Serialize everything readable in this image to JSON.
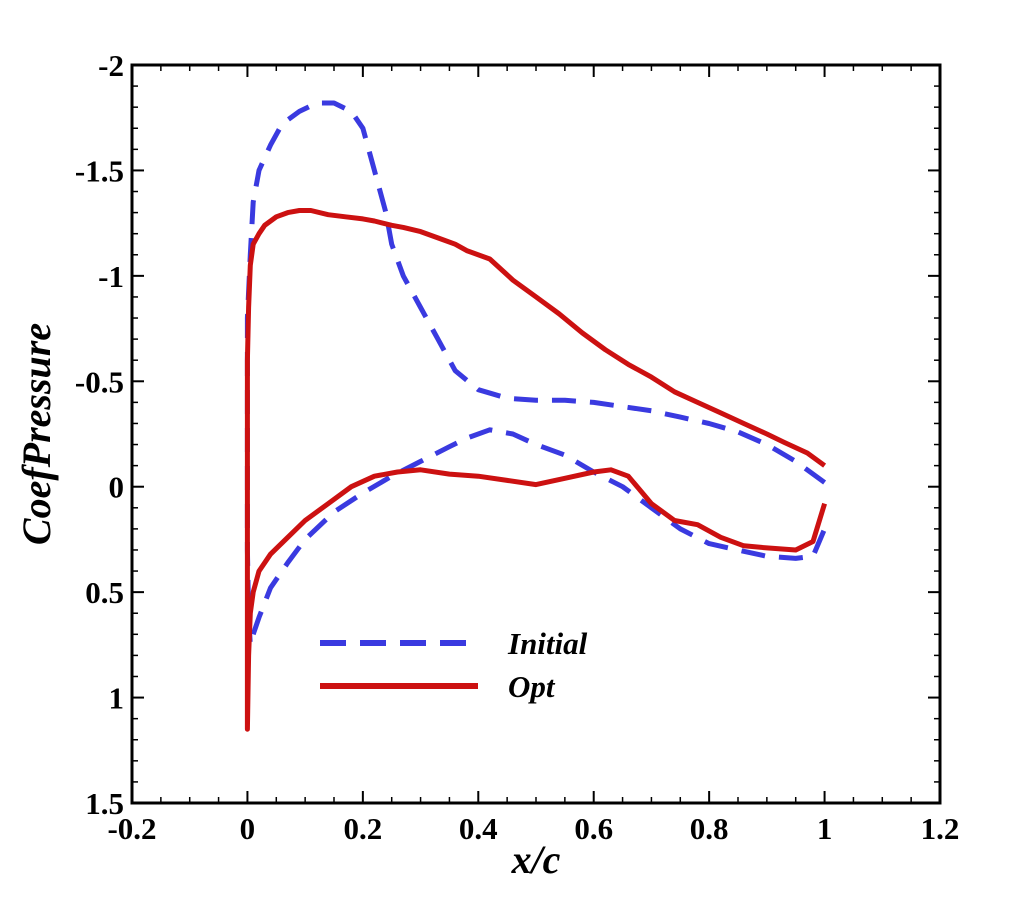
{
  "chart_data": {
    "type": "line",
    "title": "",
    "xlabel": "x/c",
    "ylabel": "CoefPressure",
    "xlim": [
      -0.2,
      1.2
    ],
    "ylim": [
      -2,
      1.5
    ],
    "y_axis_inverted": true,
    "grid": false,
    "legend_position": "lower-center",
    "x_ticks": [
      "-0.2",
      "0",
      "0.2",
      "0.4",
      "0.6",
      "0.8",
      "1",
      "1.2"
    ],
    "y_ticks": [
      "-2",
      "-1.5",
      "-1",
      "-0.5",
      "0",
      "0.5",
      "1",
      "1.5"
    ],
    "series": [
      {
        "name": "Initial",
        "color": "#3a3ae0",
        "style": "dashed",
        "x": [
          1.0,
          0.95,
          0.9,
          0.85,
          0.8,
          0.75,
          0.7,
          0.65,
          0.6,
          0.55,
          0.5,
          0.45,
          0.4,
          0.36,
          0.33,
          0.3,
          0.27,
          0.25,
          0.24,
          0.22,
          0.2,
          0.18,
          0.15,
          0.12,
          0.09,
          0.06,
          0.04,
          0.02,
          0.01,
          0.005,
          0.0,
          0.0,
          0.002,
          0.005,
          0.01,
          0.02,
          0.04,
          0.07,
          0.1,
          0.15,
          0.2,
          0.25,
          0.3,
          0.35,
          0.38,
          0.42,
          0.46,
          0.5,
          0.55,
          0.6,
          0.65,
          0.7,
          0.75,
          0.8,
          0.85,
          0.9,
          0.95,
          0.98,
          1.0
        ],
        "y": [
          -0.02,
          -0.12,
          -0.2,
          -0.26,
          -0.3,
          -0.33,
          -0.36,
          -0.38,
          -0.4,
          -0.41,
          -0.41,
          -0.42,
          -0.46,
          -0.55,
          -0.7,
          -0.85,
          -1.0,
          -1.15,
          -1.3,
          -1.5,
          -1.7,
          -1.78,
          -1.82,
          -1.82,
          -1.78,
          -1.72,
          -1.62,
          -1.5,
          -1.35,
          -1.1,
          -0.8,
          0.3,
          0.6,
          0.75,
          0.7,
          0.62,
          0.48,
          0.36,
          0.25,
          0.12,
          0.03,
          -0.05,
          -0.12,
          -0.19,
          -0.23,
          -0.27,
          -0.25,
          -0.2,
          -0.15,
          -0.07,
          0.0,
          0.1,
          0.2,
          0.27,
          0.3,
          0.33,
          0.34,
          0.33,
          0.2
        ]
      },
      {
        "name": "Opt",
        "color": "#cc1111",
        "style": "solid",
        "x": [
          1.0,
          0.97,
          0.93,
          0.9,
          0.86,
          0.82,
          0.78,
          0.74,
          0.7,
          0.66,
          0.62,
          0.58,
          0.54,
          0.5,
          0.46,
          0.42,
          0.38,
          0.36,
          0.33,
          0.3,
          0.27,
          0.25,
          0.22,
          0.2,
          0.17,
          0.14,
          0.11,
          0.09,
          0.07,
          0.05,
          0.03,
          0.02,
          0.01,
          0.005,
          0.002,
          0.0,
          0.0,
          0.002,
          0.005,
          0.01,
          0.02,
          0.04,
          0.07,
          0.1,
          0.14,
          0.18,
          0.22,
          0.26,
          0.3,
          0.35,
          0.4,
          0.45,
          0.5,
          0.55,
          0.6,
          0.63,
          0.66,
          0.7,
          0.74,
          0.78,
          0.82,
          0.86,
          0.9,
          0.95,
          0.98,
          1.0
        ],
        "y": [
          -0.1,
          -0.16,
          -0.21,
          -0.25,
          -0.3,
          -0.35,
          -0.4,
          -0.45,
          -0.52,
          -0.58,
          -0.65,
          -0.73,
          -0.82,
          -0.9,
          -0.98,
          -1.08,
          -1.12,
          -1.15,
          -1.18,
          -1.21,
          -1.23,
          -1.24,
          -1.26,
          -1.27,
          -1.28,
          -1.29,
          -1.31,
          -1.31,
          -1.3,
          -1.28,
          -1.24,
          -1.2,
          -1.15,
          -1.05,
          -0.85,
          -0.6,
          1.15,
          0.8,
          0.6,
          0.5,
          0.4,
          0.32,
          0.24,
          0.16,
          0.08,
          0.0,
          -0.05,
          -0.07,
          -0.08,
          -0.06,
          -0.05,
          -0.03,
          -0.01,
          -0.04,
          -0.07,
          -0.08,
          -0.05,
          0.08,
          0.16,
          0.18,
          0.24,
          0.28,
          0.29,
          0.3,
          0.26,
          0.08
        ]
      }
    ]
  }
}
